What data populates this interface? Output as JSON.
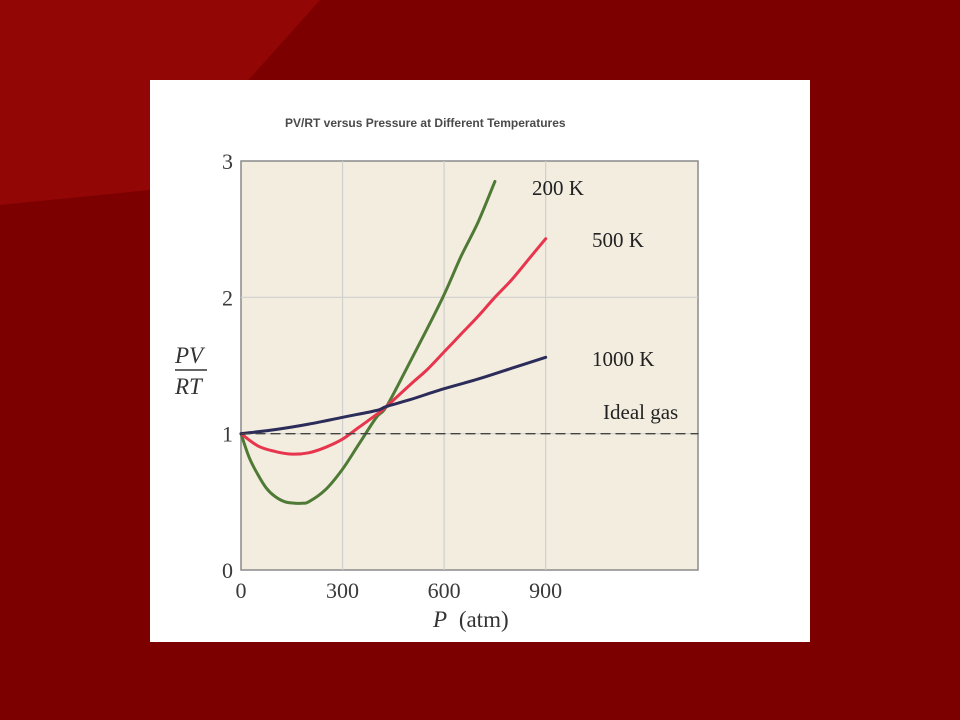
{
  "slide": {
    "background_color": "#7c0000",
    "highlight_color": "#9a0a0a"
  },
  "chart_data": {
    "type": "line",
    "title": "PV/RT versus Pressure at Different Temperatures",
    "xlabel_var": "P",
    "xlabel_unit": "(atm)",
    "ylabel_numerator": "PV",
    "ylabel_denominator": "RT",
    "xlim": [
      0,
      1350
    ],
    "ylim": [
      0,
      3
    ],
    "xticks": [
      0,
      300,
      600,
      900
    ],
    "xtick_labels": [
      "0",
      "300",
      "600",
      "900"
    ],
    "yticks": [
      0,
      1,
      2,
      3
    ],
    "ytick_labels": [
      "0",
      "1",
      "2",
      "3"
    ],
    "grid": true,
    "plot_background": "#f3ede0",
    "series": [
      {
        "name": "200 K",
        "color": "#4e7a35",
        "x": [
          0,
          25,
          50,
          75,
          100,
          130,
          160,
          180,
          200,
          250,
          300,
          350,
          400,
          430,
          500,
          550,
          600,
          650,
          700,
          750
        ],
        "y": [
          1.0,
          0.82,
          0.7,
          0.6,
          0.54,
          0.5,
          0.49,
          0.49,
          0.5,
          0.59,
          0.74,
          0.93,
          1.12,
          1.2,
          1.53,
          1.77,
          2.02,
          2.3,
          2.55,
          2.85
        ]
      },
      {
        "name": "500 K",
        "color": "#e8354e",
        "x": [
          0,
          50,
          100,
          150,
          200,
          250,
          300,
          350,
          400,
          430,
          500,
          550,
          600,
          650,
          700,
          750,
          800,
          850,
          900
        ],
        "y": [
          1.0,
          0.91,
          0.87,
          0.85,
          0.86,
          0.9,
          0.96,
          1.05,
          1.14,
          1.2,
          1.36,
          1.47,
          1.6,
          1.73,
          1.86,
          2.0,
          2.13,
          2.28,
          2.43
        ]
      },
      {
        "name": "1000 K",
        "color": "#2c2c5a",
        "x": [
          0,
          100,
          200,
          300,
          400,
          430,
          500,
          600,
          700,
          800,
          900
        ],
        "y": [
          1.0,
          1.03,
          1.07,
          1.12,
          1.17,
          1.2,
          1.25,
          1.33,
          1.4,
          1.48,
          1.56
        ]
      },
      {
        "name": "Ideal gas",
        "color": "#444444",
        "style": "dashed",
        "x": [
          0,
          1350
        ],
        "y": [
          1.0,
          1.0
        ]
      }
    ]
  }
}
